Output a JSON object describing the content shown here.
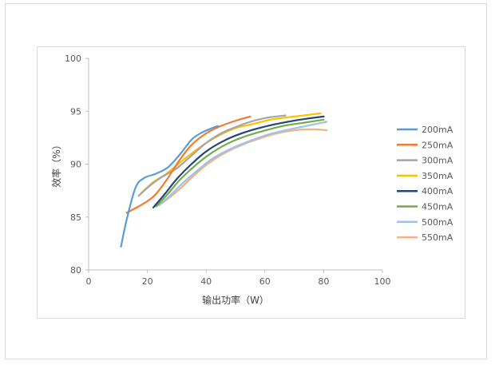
{
  "chart_data": {
    "type": "line",
    "title": "",
    "xlabel": "输出功率（W）",
    "ylabel": "效率（%）",
    "xlim": [
      0,
      100
    ],
    "ylim": [
      80,
      100
    ],
    "xticks": [
      "0",
      "20",
      "40",
      "60",
      "80",
      "100"
    ],
    "yticks": [
      "80",
      "85",
      "90",
      "95",
      "100"
    ],
    "grid": false,
    "legend_position": "right",
    "series": [
      {
        "name": "200mA",
        "color": "#5B9BD5",
        "points": [
          [
            11,
            82.2
          ],
          [
            13,
            84.8
          ],
          [
            16,
            87.8
          ],
          [
            19,
            88.7
          ],
          [
            23,
            89.1
          ],
          [
            27,
            89.7
          ],
          [
            31,
            90.9
          ],
          [
            35,
            92.3
          ],
          [
            38,
            92.9
          ],
          [
            42,
            93.4
          ],
          [
            44,
            93.6
          ]
        ]
      },
      {
        "name": "250mA",
        "color": "#ED7D31",
        "points": [
          [
            13,
            85.4
          ],
          [
            17,
            86.0
          ],
          [
            20,
            86.5
          ],
          [
            23,
            87.2
          ],
          [
            27,
            88.7
          ],
          [
            31,
            90.4
          ],
          [
            35,
            91.8
          ],
          [
            40,
            92.9
          ],
          [
            45,
            93.6
          ],
          [
            50,
            94.1
          ],
          [
            55,
            94.5
          ]
        ]
      },
      {
        "name": "300mA",
        "color": "#A5A5A5",
        "points": [
          [
            17,
            87.0
          ],
          [
            21,
            88.0
          ],
          [
            25,
            88.8
          ],
          [
            30,
            89.6
          ],
          [
            35,
            90.8
          ],
          [
            40,
            92.0
          ],
          [
            45,
            92.9
          ],
          [
            50,
            93.5
          ],
          [
            55,
            94.0
          ],
          [
            61,
            94.4
          ],
          [
            67,
            94.6
          ]
        ]
      },
      {
        "name": "350mA",
        "color": "#FFC000",
        "points": [
          [
            18,
            87.3
          ],
          [
            22,
            88.3
          ],
          [
            26,
            89.0
          ],
          [
            30,
            89.9
          ],
          [
            35,
            91.0
          ],
          [
            40,
            92.0
          ],
          [
            45,
            92.8
          ],
          [
            50,
            93.4
          ],
          [
            56,
            93.8
          ],
          [
            62,
            94.2
          ],
          [
            70,
            94.5
          ],
          [
            79,
            94.8
          ]
        ]
      },
      {
        "name": "400mA",
        "color": "#264478",
        "points": [
          [
            22,
            85.9
          ],
          [
            26,
            87.2
          ],
          [
            30,
            88.6
          ],
          [
            35,
            90.0
          ],
          [
            40,
            91.2
          ],
          [
            46,
            92.2
          ],
          [
            52,
            92.9
          ],
          [
            58,
            93.4
          ],
          [
            64,
            93.8
          ],
          [
            72,
            94.2
          ],
          [
            80,
            94.5
          ]
        ]
      },
      {
        "name": "450mA",
        "color": "#70AD47",
        "points": [
          [
            23,
            86.0
          ],
          [
            27,
            87.2
          ],
          [
            31,
            88.5
          ],
          [
            36,
            89.8
          ],
          [
            41,
            90.9
          ],
          [
            47,
            91.9
          ],
          [
            53,
            92.6
          ],
          [
            59,
            93.1
          ],
          [
            66,
            93.6
          ],
          [
            73,
            93.9
          ],
          [
            80,
            94.2
          ]
        ]
      },
      {
        "name": "500mA",
        "color": "#9DC3E6",
        "points": [
          [
            24,
            86.1
          ],
          [
            28,
            87.1
          ],
          [
            32,
            88.2
          ],
          [
            37,
            89.4
          ],
          [
            42,
            90.5
          ],
          [
            48,
            91.4
          ],
          [
            54,
            92.1
          ],
          [
            60,
            92.7
          ],
          [
            67,
            93.2
          ],
          [
            74,
            93.6
          ],
          [
            81,
            94.0
          ]
        ]
      },
      {
        "name": "550mA",
        "color": "#F4B183",
        "points": [
          [
            25,
            86.3
          ],
          [
            30,
            87.4
          ],
          [
            35,
            88.7
          ],
          [
            40,
            89.9
          ],
          [
            46,
            91.0
          ],
          [
            52,
            91.8
          ],
          [
            58,
            92.4
          ],
          [
            64,
            92.9
          ],
          [
            70,
            93.2
          ],
          [
            76,
            93.3
          ],
          [
            81,
            93.2
          ]
        ]
      }
    ]
  }
}
